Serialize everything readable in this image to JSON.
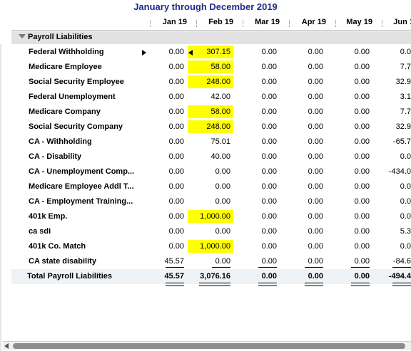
{
  "report": {
    "title": "January through December 2019"
  },
  "columns": [
    "Jan 19",
    "Feb 19",
    "Mar 19",
    "Apr 19",
    "May 19",
    "Jun 1"
  ],
  "section": {
    "label": "Payroll Liabilities"
  },
  "rows": [
    {
      "name": "Federal Withholding",
      "values": [
        "0.00",
        "307.15",
        "0.00",
        "0.00",
        "0.00",
        "0.0"
      ]
    },
    {
      "name": "Medicare Employee",
      "values": [
        "0.00",
        "58.00",
        "0.00",
        "0.00",
        "0.00",
        "7.7"
      ]
    },
    {
      "name": "Social Security Employee",
      "values": [
        "0.00",
        "248.00",
        "0.00",
        "0.00",
        "0.00",
        "32.9"
      ]
    },
    {
      "name": "Federal Unemployment",
      "values": [
        "0.00",
        "42.00",
        "0.00",
        "0.00",
        "0.00",
        "3.1"
      ]
    },
    {
      "name": "Medicare Company",
      "values": [
        "0.00",
        "58.00",
        "0.00",
        "0.00",
        "0.00",
        "7.7"
      ]
    },
    {
      "name": "Social Security Company",
      "values": [
        "0.00",
        "248.00",
        "0.00",
        "0.00",
        "0.00",
        "32.9"
      ]
    },
    {
      "name": "CA - Withholding",
      "values": [
        "0.00",
        "75.01",
        "0.00",
        "0.00",
        "0.00",
        "-65.7"
      ]
    },
    {
      "name": "CA - Disability",
      "values": [
        "0.00",
        "40.00",
        "0.00",
        "0.00",
        "0.00",
        "0.0"
      ]
    },
    {
      "name": "CA - Unemployment Comp...",
      "values": [
        "0.00",
        "0.00",
        "0.00",
        "0.00",
        "0.00",
        "-434.0"
      ]
    },
    {
      "name": "Medicare Employee Addl T...",
      "values": [
        "0.00",
        "0.00",
        "0.00",
        "0.00",
        "0.00",
        "0.0"
      ]
    },
    {
      "name": "CA - Employment Training...",
      "values": [
        "0.00",
        "0.00",
        "0.00",
        "0.00",
        "0.00",
        "0.0"
      ]
    },
    {
      "name": "401k Emp.",
      "values": [
        "0.00",
        "1,000.00",
        "0.00",
        "0.00",
        "0.00",
        "0.0"
      ]
    },
    {
      "name": "ca sdi",
      "values": [
        "0.00",
        "0.00",
        "0.00",
        "0.00",
        "0.00",
        "5.3"
      ]
    },
    {
      "name": "401k Co. Match",
      "values": [
        "0.00",
        "1,000.00",
        "0.00",
        "0.00",
        "0.00",
        "0.0"
      ]
    },
    {
      "name": "CA state disability",
      "values": [
        "45.57",
        "0.00",
        "0.00",
        "0.00",
        "0.00",
        "-84.6"
      ]
    }
  ],
  "total": {
    "name": "Total Payroll Liabilities",
    "values": [
      "45.57",
      "3,076.16",
      "0.00",
      "0.00",
      "0.00",
      "-494.4"
    ]
  },
  "highlight_color": "#ffff00"
}
